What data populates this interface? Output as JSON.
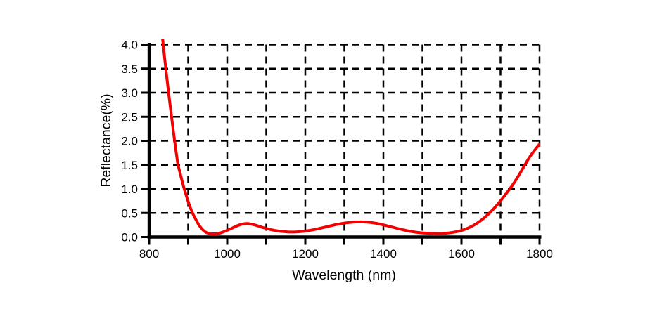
{
  "chart_data": {
    "type": "line",
    "title": "",
    "xlabel": "Wavelength (nm)",
    "ylabel": "Reflectance(%)",
    "xlim": [
      800,
      1800
    ],
    "ylim": [
      0.0,
      4.0
    ],
    "x_tick_labels": [
      "800",
      "1000",
      "1200",
      "1400",
      "1600",
      "1800"
    ],
    "x_tick_minor_step": 100,
    "y_tick_labels": [
      "0.0",
      "0.5",
      "1.0",
      "1.5",
      "2.0",
      "2.5",
      "3.0",
      "3.5",
      "4.0"
    ],
    "grid": {
      "style": "dashed",
      "x_step": 100,
      "y_step": 0.5,
      "color": "#000000",
      "dash": [
        10,
        7
      ]
    },
    "legend": "none",
    "axes_color": "#000000",
    "series": [
      {
        "name": "reflectance",
        "color": "#f40000",
        "points": [
          [
            834.5,
            4.12
          ],
          [
            836,
            4.0
          ],
          [
            842,
            3.55
          ],
          [
            848,
            3.13
          ],
          [
            854,
            2.72
          ],
          [
            860,
            2.33
          ],
          [
            866,
            1.96
          ],
          [
            872,
            1.6
          ],
          [
            874,
            1.5
          ],
          [
            878,
            1.37
          ],
          [
            884,
            1.18
          ],
          [
            890,
            1.0
          ],
          [
            896,
            0.84
          ],
          [
            902,
            0.69
          ],
          [
            908,
            0.56
          ],
          [
            914,
            0.45
          ],
          [
            920,
            0.36
          ],
          [
            926,
            0.27
          ],
          [
            932,
            0.2
          ],
          [
            938,
            0.145
          ],
          [
            944,
            0.105
          ],
          [
            950,
            0.082
          ],
          [
            957,
            0.07
          ],
          [
            964,
            0.065
          ],
          [
            972,
            0.068
          ],
          [
            980,
            0.08
          ],
          [
            990,
            0.107
          ],
          [
            1000,
            0.14
          ],
          [
            1010,
            0.175
          ],
          [
            1020,
            0.215
          ],
          [
            1030,
            0.248
          ],
          [
            1040,
            0.272
          ],
          [
            1050,
            0.28
          ],
          [
            1060,
            0.272
          ],
          [
            1070,
            0.252
          ],
          [
            1080,
            0.228
          ],
          [
            1090,
            0.202
          ],
          [
            1100,
            0.178
          ],
          [
            1110,
            0.157
          ],
          [
            1120,
            0.14
          ],
          [
            1130,
            0.127
          ],
          [
            1140,
            0.117
          ],
          [
            1152,
            0.108
          ],
          [
            1164,
            0.104
          ],
          [
            1176,
            0.106
          ],
          [
            1188,
            0.112
          ],
          [
            1200,
            0.124
          ],
          [
            1214,
            0.142
          ],
          [
            1228,
            0.164
          ],
          [
            1242,
            0.19
          ],
          [
            1256,
            0.217
          ],
          [
            1270,
            0.244
          ],
          [
            1284,
            0.267
          ],
          [
            1298,
            0.287
          ],
          [
            1312,
            0.302
          ],
          [
            1326,
            0.312
          ],
          [
            1340,
            0.316
          ],
          [
            1354,
            0.313
          ],
          [
            1368,
            0.302
          ],
          [
            1382,
            0.284
          ],
          [
            1396,
            0.26
          ],
          [
            1410,
            0.233
          ],
          [
            1424,
            0.204
          ],
          [
            1438,
            0.175
          ],
          [
            1452,
            0.148
          ],
          [
            1466,
            0.124
          ],
          [
            1480,
            0.104
          ],
          [
            1494,
            0.09
          ],
          [
            1508,
            0.082
          ],
          [
            1522,
            0.076
          ],
          [
            1536,
            0.073
          ],
          [
            1550,
            0.075
          ],
          [
            1564,
            0.083
          ],
          [
            1578,
            0.098
          ],
          [
            1592,
            0.12
          ],
          [
            1606,
            0.152
          ],
          [
            1620,
            0.198
          ],
          [
            1634,
            0.258
          ],
          [
            1648,
            0.333
          ],
          [
            1662,
            0.425
          ],
          [
            1676,
            0.533
          ],
          [
            1690,
            0.655
          ],
          [
            1704,
            0.792
          ],
          [
            1718,
            0.938
          ],
          [
            1732,
            1.095
          ],
          [
            1746,
            1.272
          ],
          [
            1760,
            1.465
          ],
          [
            1774,
            1.655
          ],
          [
            1787,
            1.8
          ],
          [
            1800,
            1.93
          ]
        ]
      }
    ]
  }
}
